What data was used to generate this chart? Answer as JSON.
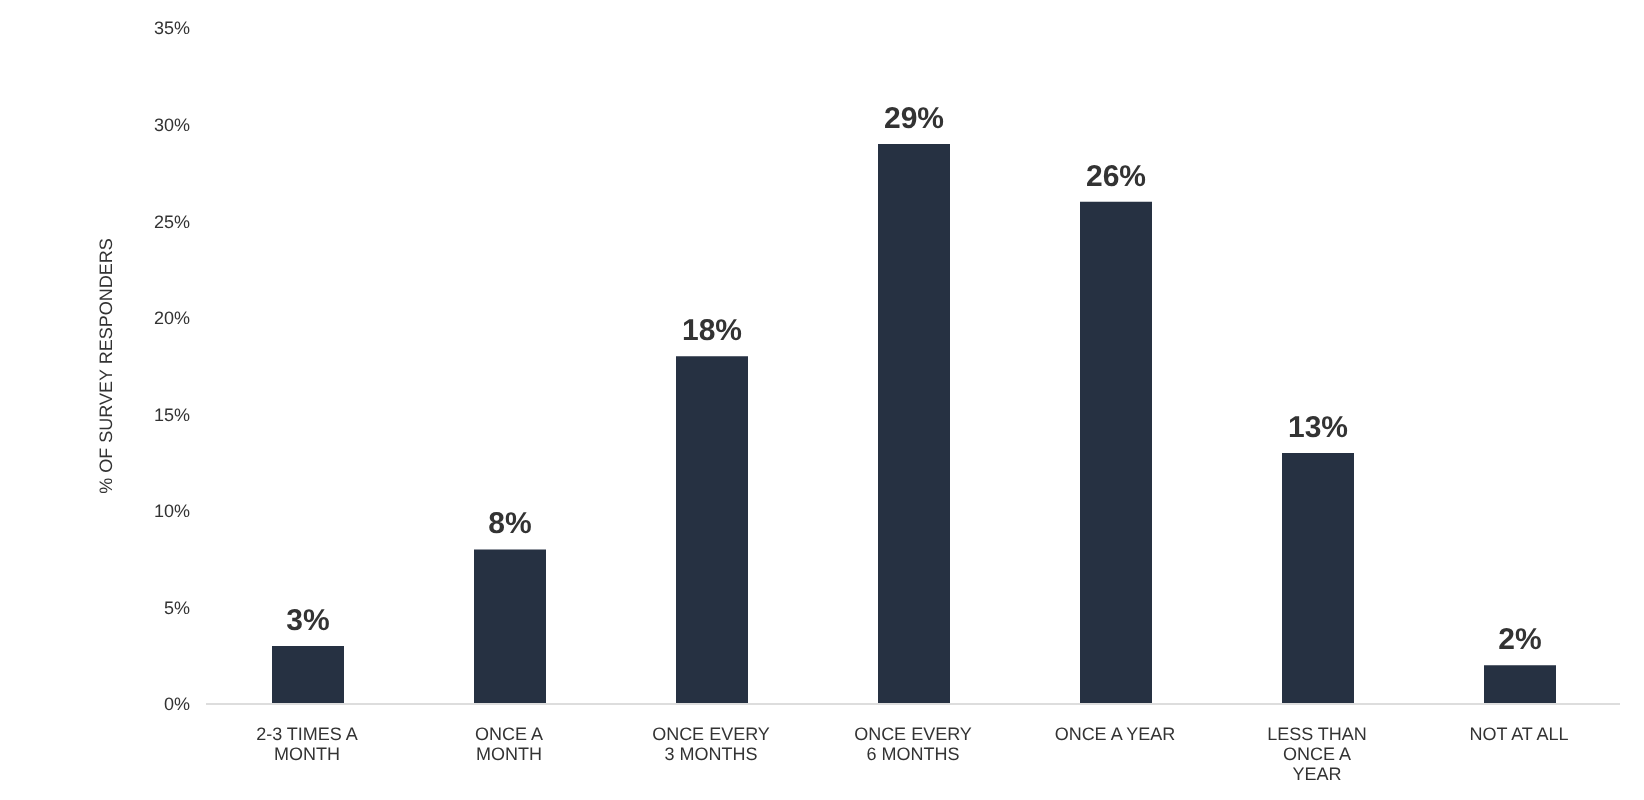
{
  "chart_data": {
    "type": "bar",
    "ylabel": "% OF SURVEY RESPONDERS",
    "categories": [
      "2-3 TIMES A\nMONTH",
      "ONCE A\nMONTH",
      "ONCE EVERY\n3 MONTHS",
      "ONCE EVERY\n6 MONTHS",
      "ONCE A YEAR",
      "LESS THAN\nONCE A\nYEAR",
      "NOT AT ALL"
    ],
    "values": [
      3,
      8,
      18,
      29,
      26,
      13,
      2
    ],
    "value_labels": [
      "3%",
      "8%",
      "18%",
      "29%",
      "26%",
      "13%",
      "2%"
    ],
    "color": "#263142",
    "ylim": [
      0,
      35
    ],
    "yticks": [
      {
        "value": 0,
        "label": "0%"
      },
      {
        "value": 5,
        "label": "5%"
      },
      {
        "value": 10,
        "label": "10%"
      },
      {
        "value": 15,
        "label": "15%"
      },
      {
        "value": 20,
        "label": "20%"
      },
      {
        "value": 25,
        "label": "25%"
      },
      {
        "value": 30,
        "label": "30%"
      },
      {
        "value": 35,
        "label": "35%"
      }
    ],
    "grid": false,
    "legend": false
  }
}
